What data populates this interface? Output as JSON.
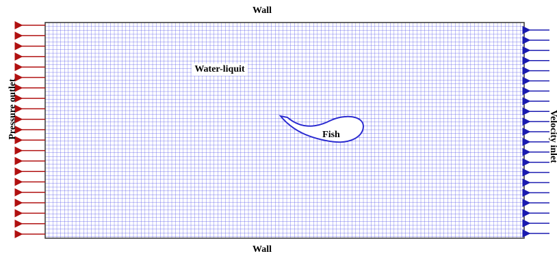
{
  "labels": {
    "top_wall": "Wall",
    "bottom_wall": "Wall",
    "left_boundary": "Pressure outlet",
    "right_boundary": "Velocity inlet",
    "fluid": "Water-liquit",
    "body": "Fish"
  }
}
